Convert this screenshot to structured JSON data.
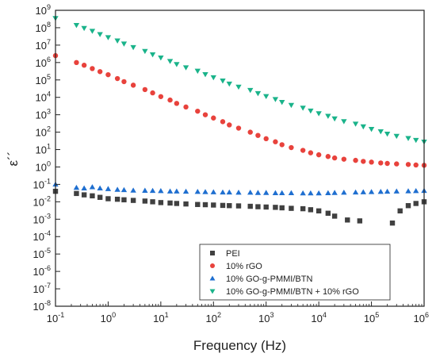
{
  "chart_data": {
    "type": "scatter",
    "title": "",
    "xlabel": "Frequency (Hz)",
    "ylabel": "ε´´",
    "xscale": "log",
    "yscale": "log",
    "xlim": [
      0.1,
      1000000
    ],
    "ylim": [
      1e-08,
      1000000000.0
    ],
    "x_ticks": [
      {
        "value": 0.1,
        "base": "10",
        "exp": "-1"
      },
      {
        "value": 1,
        "base": "10",
        "exp": "0"
      },
      {
        "value": 10,
        "base": "10",
        "exp": "1"
      },
      {
        "value": 100,
        "base": "10",
        "exp": "2"
      },
      {
        "value": 1000,
        "base": "10",
        "exp": "3"
      },
      {
        "value": 10000,
        "base": "10",
        "exp": "4"
      },
      {
        "value": 100000,
        "base": "10",
        "exp": "5"
      },
      {
        "value": 1000000,
        "base": "10",
        "exp": "6"
      }
    ],
    "y_ticks": [
      {
        "value": 1e-08,
        "base": "10",
        "exp": "-8"
      },
      {
        "value": 1e-07,
        "base": "10",
        "exp": "-7"
      },
      {
        "value": 1e-06,
        "base": "10",
        "exp": "-6"
      },
      {
        "value": 1e-05,
        "base": "10",
        "exp": "-5"
      },
      {
        "value": 0.0001,
        "base": "10",
        "exp": "-4"
      },
      {
        "value": 0.001,
        "base": "10",
        "exp": "-3"
      },
      {
        "value": 0.01,
        "base": "10",
        "exp": "-2"
      },
      {
        "value": 0.1,
        "base": "10",
        "exp": "-1"
      },
      {
        "value": 1,
        "base": "10",
        "exp": "0"
      },
      {
        "value": 10,
        "base": "10",
        "exp": "1"
      },
      {
        "value": 100,
        "base": "10",
        "exp": "2"
      },
      {
        "value": 1000,
        "base": "10",
        "exp": "3"
      },
      {
        "value": 10000,
        "base": "10",
        "exp": "4"
      },
      {
        "value": 100000,
        "base": "10",
        "exp": "5"
      },
      {
        "value": 1000000,
        "base": "10",
        "exp": "6"
      },
      {
        "value": 10000000,
        "base": "10",
        "exp": "7"
      },
      {
        "value": 100000000,
        "base": "10",
        "exp": "8"
      },
      {
        "value": 1000000000,
        "base": "10",
        "exp": "9"
      }
    ],
    "grid": false,
    "legend_position": "bottom-right",
    "series": [
      {
        "name": "PEI",
        "marker": "square",
        "color": "#404040",
        "points": [
          [
            0.1,
            0.04
          ],
          [
            0.25,
            0.03
          ],
          [
            0.35,
            0.025
          ],
          [
            0.5,
            0.022
          ],
          [
            0.7,
            0.018
          ],
          [
            1,
            0.015
          ],
          [
            1.5,
            0.014
          ],
          [
            2,
            0.013
          ],
          [
            3,
            0.012
          ],
          [
            5,
            0.011
          ],
          [
            7,
            0.01
          ],
          [
            10,
            0.009
          ],
          [
            15,
            0.0085
          ],
          [
            20,
            0.008
          ],
          [
            30,
            0.0075
          ],
          [
            50,
            0.007
          ],
          [
            70,
            0.0068
          ],
          [
            100,
            0.0065
          ],
          [
            150,
            0.0062
          ],
          [
            200,
            0.006
          ],
          [
            300,
            0.0058
          ],
          [
            500,
            0.0055
          ],
          [
            700,
            0.0052
          ],
          [
            1000,
            0.005
          ],
          [
            1500,
            0.0048
          ],
          [
            2000,
            0.0045
          ],
          [
            3000,
            0.0042
          ],
          [
            5000,
            0.004
          ],
          [
            7000,
            0.0035
          ],
          [
            10000,
            0.003
          ],
          [
            15000,
            0.0022
          ],
          [
            20000,
            0.0015
          ],
          [
            35000,
            0.0009
          ],
          [
            60000,
            0.0008
          ],
          [
            250000,
            0.0006
          ],
          [
            350000,
            0.003
          ],
          [
            500000,
            0.006
          ],
          [
            700000,
            0.008
          ],
          [
            1000000,
            0.01
          ]
        ]
      },
      {
        "name": "10% rGO",
        "marker": "circle",
        "color": "#e8423c",
        "points": [
          [
            0.1,
            2500000
          ],
          [
            0.25,
            1000000
          ],
          [
            0.35,
            700000
          ],
          [
            0.5,
            450000
          ],
          [
            0.7,
            300000
          ],
          [
            1,
            200000
          ],
          [
            1.5,
            120000
          ],
          [
            2,
            80000
          ],
          [
            3,
            50000
          ],
          [
            5,
            28000
          ],
          [
            7,
            18000
          ],
          [
            10,
            11000
          ],
          [
            15,
            7000
          ],
          [
            20,
            4500
          ],
          [
            30,
            2800
          ],
          [
            50,
            1600
          ],
          [
            70,
            1000
          ],
          [
            100,
            650
          ],
          [
            150,
            400
          ],
          [
            200,
            260
          ],
          [
            300,
            170
          ],
          [
            500,
            100
          ],
          [
            700,
            65
          ],
          [
            1000,
            42
          ],
          [
            1500,
            28
          ],
          [
            2000,
            19
          ],
          [
            3000,
            13
          ],
          [
            5000,
            9
          ],
          [
            7000,
            6.5
          ],
          [
            10000,
            5
          ],
          [
            15000,
            4
          ],
          [
            20000,
            3.3
          ],
          [
            30000,
            2.8
          ],
          [
            50000,
            2.4
          ],
          [
            70000,
            2.1
          ],
          [
            100000,
            1.9
          ],
          [
            150000,
            1.7
          ],
          [
            200000,
            1.6
          ],
          [
            300000,
            1.5
          ],
          [
            500000,
            1.4
          ],
          [
            700000,
            1.3
          ],
          [
            1000000,
            1.25
          ]
        ]
      },
      {
        "name": "10% GO-g-PMMI/BTN",
        "marker": "triangle-up",
        "color": "#1f6fd0",
        "points": [
          [
            0.1,
            0.1
          ],
          [
            0.25,
            0.065
          ],
          [
            0.35,
            0.06
          ],
          [
            0.5,
            0.07
          ],
          [
            0.7,
            0.06
          ],
          [
            1,
            0.055
          ],
          [
            1.5,
            0.05
          ],
          [
            2,
            0.048
          ],
          [
            3,
            0.045
          ],
          [
            5,
            0.044
          ],
          [
            7,
            0.043
          ],
          [
            10,
            0.042
          ],
          [
            15,
            0.04
          ],
          [
            20,
            0.04
          ],
          [
            30,
            0.039
          ],
          [
            50,
            0.038
          ],
          [
            70,
            0.037
          ],
          [
            100,
            0.036
          ],
          [
            150,
            0.035
          ],
          [
            200,
            0.035
          ],
          [
            300,
            0.034
          ],
          [
            500,
            0.034
          ],
          [
            700,
            0.033
          ],
          [
            1000,
            0.033
          ],
          [
            1500,
            0.032
          ],
          [
            2000,
            0.032
          ],
          [
            3000,
            0.032
          ],
          [
            5000,
            0.031
          ],
          [
            7000,
            0.031
          ],
          [
            10000,
            0.031
          ],
          [
            15000,
            0.032
          ],
          [
            20000,
            0.033
          ],
          [
            30000,
            0.034
          ],
          [
            50000,
            0.035
          ],
          [
            70000,
            0.036
          ],
          [
            100000,
            0.037
          ],
          [
            150000,
            0.038
          ],
          [
            200000,
            0.039
          ],
          [
            300000,
            0.04
          ],
          [
            500000,
            0.041
          ],
          [
            700000,
            0.042
          ],
          [
            1000000,
            0.043
          ]
        ]
      },
      {
        "name": "10% GO-g-PMMI/BTN + 10% rGO",
        "marker": "triangle-down",
        "color": "#1ab38a",
        "points": [
          [
            0.1,
            350000000
          ],
          [
            0.25,
            140000000
          ],
          [
            0.35,
            95000000
          ],
          [
            0.5,
            65000000
          ],
          [
            0.7,
            42000000
          ],
          [
            1,
            28000000
          ],
          [
            1.5,
            18000000
          ],
          [
            2,
            12000000
          ],
          [
            3,
            7500000
          ],
          [
            5,
            4500000
          ],
          [
            7,
            2900000
          ],
          [
            10,
            1900000
          ],
          [
            15,
            1200000
          ],
          [
            20,
            800000
          ],
          [
            30,
            520000
          ],
          [
            50,
            330000
          ],
          [
            70,
            210000
          ],
          [
            100,
            140000
          ],
          [
            150,
            90000
          ],
          [
            200,
            60000
          ],
          [
            300,
            40000
          ],
          [
            500,
            26000
          ],
          [
            700,
            17000
          ],
          [
            1000,
            11500
          ],
          [
            1500,
            7800
          ],
          [
            2000,
            5300
          ],
          [
            3000,
            3600
          ],
          [
            5000,
            2500
          ],
          [
            7000,
            1700
          ],
          [
            10000,
            1200
          ],
          [
            15000,
            850
          ],
          [
            20000,
            600
          ],
          [
            30000,
            420
          ],
          [
            50000,
            300
          ],
          [
            70000,
            210
          ],
          [
            100000,
            150
          ],
          [
            150000,
            110
          ],
          [
            200000,
            80
          ],
          [
            300000,
            60
          ],
          [
            500000,
            45
          ],
          [
            700000,
            35
          ],
          [
            1000000,
            28
          ]
        ]
      }
    ]
  }
}
